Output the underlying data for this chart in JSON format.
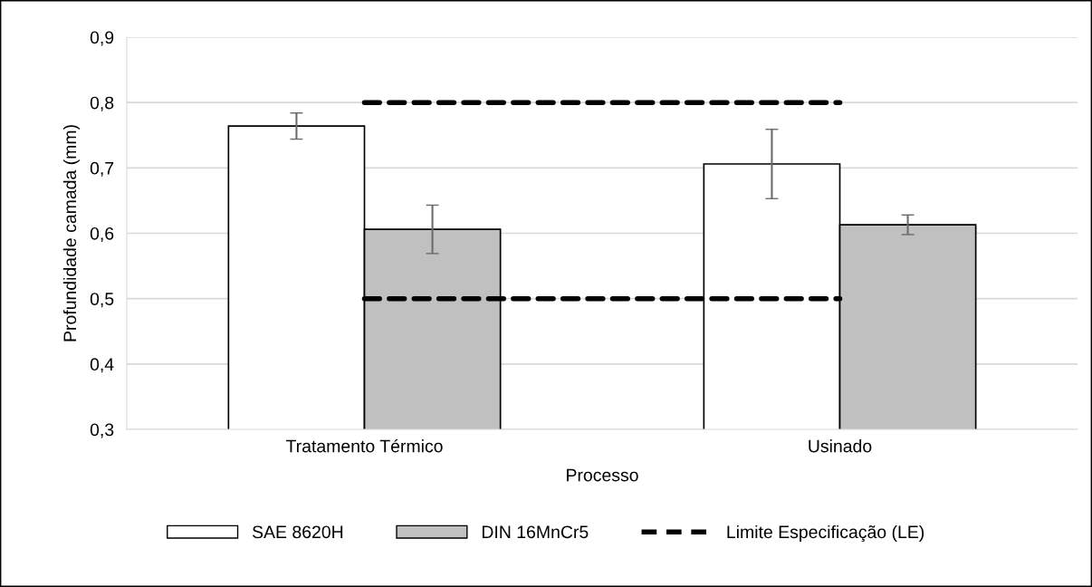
{
  "chart_data": {
    "type": "bar",
    "xlabel": "Processo",
    "ylabel": "Profundidade camada (mm)",
    "categories": [
      "Tratamento Térmico",
      "Usinado"
    ],
    "series": [
      {
        "name": "SAE 8620H",
        "color": "#ffffff",
        "values": [
          0.764,
          0.706
        ],
        "errors": [
          0.02,
          0.053
        ]
      },
      {
        "name": "DIN 16MnCr5",
        "color": "#c0c0c0",
        "values": [
          0.606,
          0.613
        ],
        "errors": [
          0.037,
          0.015
        ]
      },
      {
        "name": "Limite Especificação (LE)",
        "type": "line",
        "color": "#000000",
        "line_style": "dashed",
        "values": [
          0.8,
          0.8
        ]
      },
      {
        "type": "line",
        "color": "#000000",
        "line_style": "dashed",
        "values": [
          0.5,
          0.5
        ]
      }
    ],
    "ylim": [
      0.3,
      0.9
    ],
    "yticks": [
      {
        "value": 0.3,
        "label": "0,3"
      },
      {
        "value": 0.4,
        "label": "0,4"
      },
      {
        "value": 0.5,
        "label": "0,5"
      },
      {
        "value": 0.6,
        "label": "0,6"
      },
      {
        "value": 0.7,
        "label": "0,7"
      },
      {
        "value": 0.8,
        "label": "0,8"
      },
      {
        "value": 0.9,
        "label": "0,9"
      }
    ],
    "grid": "y",
    "legend": "bottom"
  }
}
